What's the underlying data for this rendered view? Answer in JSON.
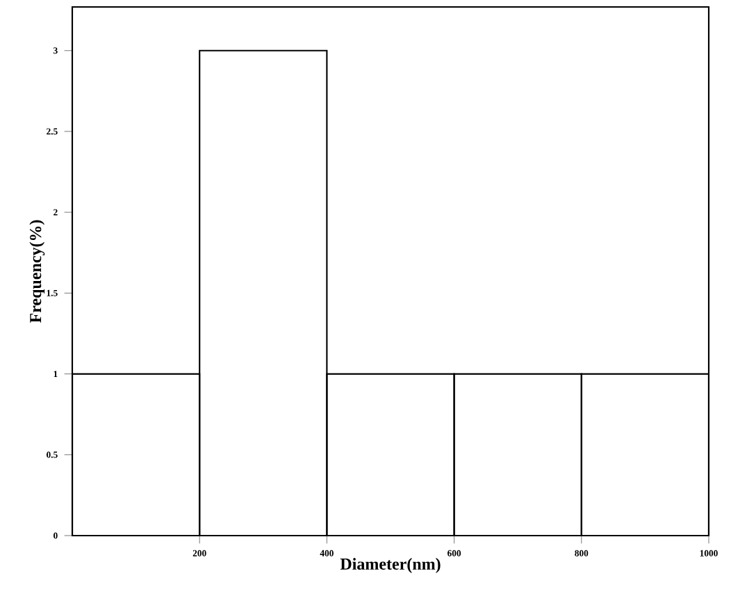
{
  "chart_data": {
    "type": "histogram",
    "xlabel": "Diameter(nm)",
    "ylabel": "Frequency(%)",
    "bins": [
      0,
      200,
      400,
      600,
      800,
      1000
    ],
    "values": [
      1,
      3,
      1,
      1,
      1
    ],
    "color": "#000000",
    "xlim": [
      0,
      1000
    ],
    "ylim": [
      0,
      3.27
    ],
    "xticks": [
      200,
      400,
      600,
      800,
      1000
    ],
    "yticks": [
      0,
      0.5,
      1,
      1.5,
      2,
      2.5,
      3
    ],
    "grid": false
  }
}
